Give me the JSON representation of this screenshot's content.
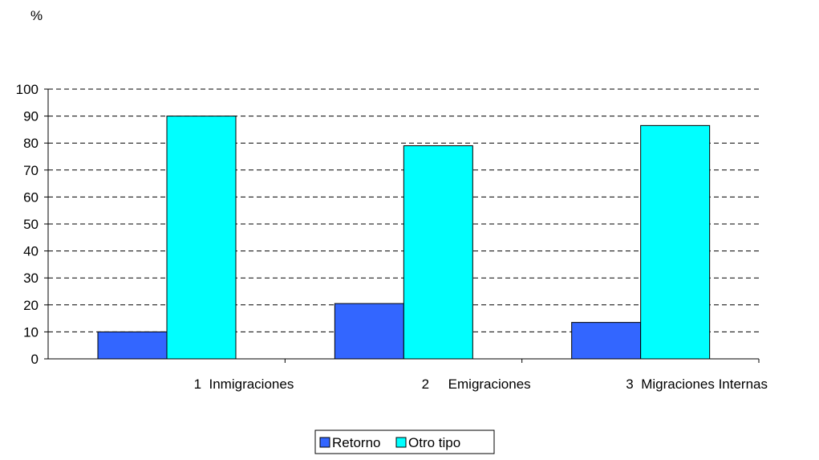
{
  "chart_data": {
    "type": "bar",
    "title": "",
    "unit_label": "%",
    "categories": [
      "1  Inmigraciones",
      "2     Emigraciones",
      "3  Migraciones Internas"
    ],
    "series": [
      {
        "name": "Retorno",
        "color": "#3366FF",
        "values": [
          10,
          20.5,
          13.5
        ]
      },
      {
        "name": "Otro tipo",
        "color": "#00FFFF",
        "values": [
          90,
          79,
          86.5
        ]
      }
    ],
    "ylim": [
      0,
      100
    ],
    "yticks": [
      0,
      10,
      20,
      30,
      40,
      50,
      60,
      70,
      80,
      90,
      100
    ],
    "grid": true,
    "grid_style": "dashed",
    "legend_position": "bottom-center"
  }
}
